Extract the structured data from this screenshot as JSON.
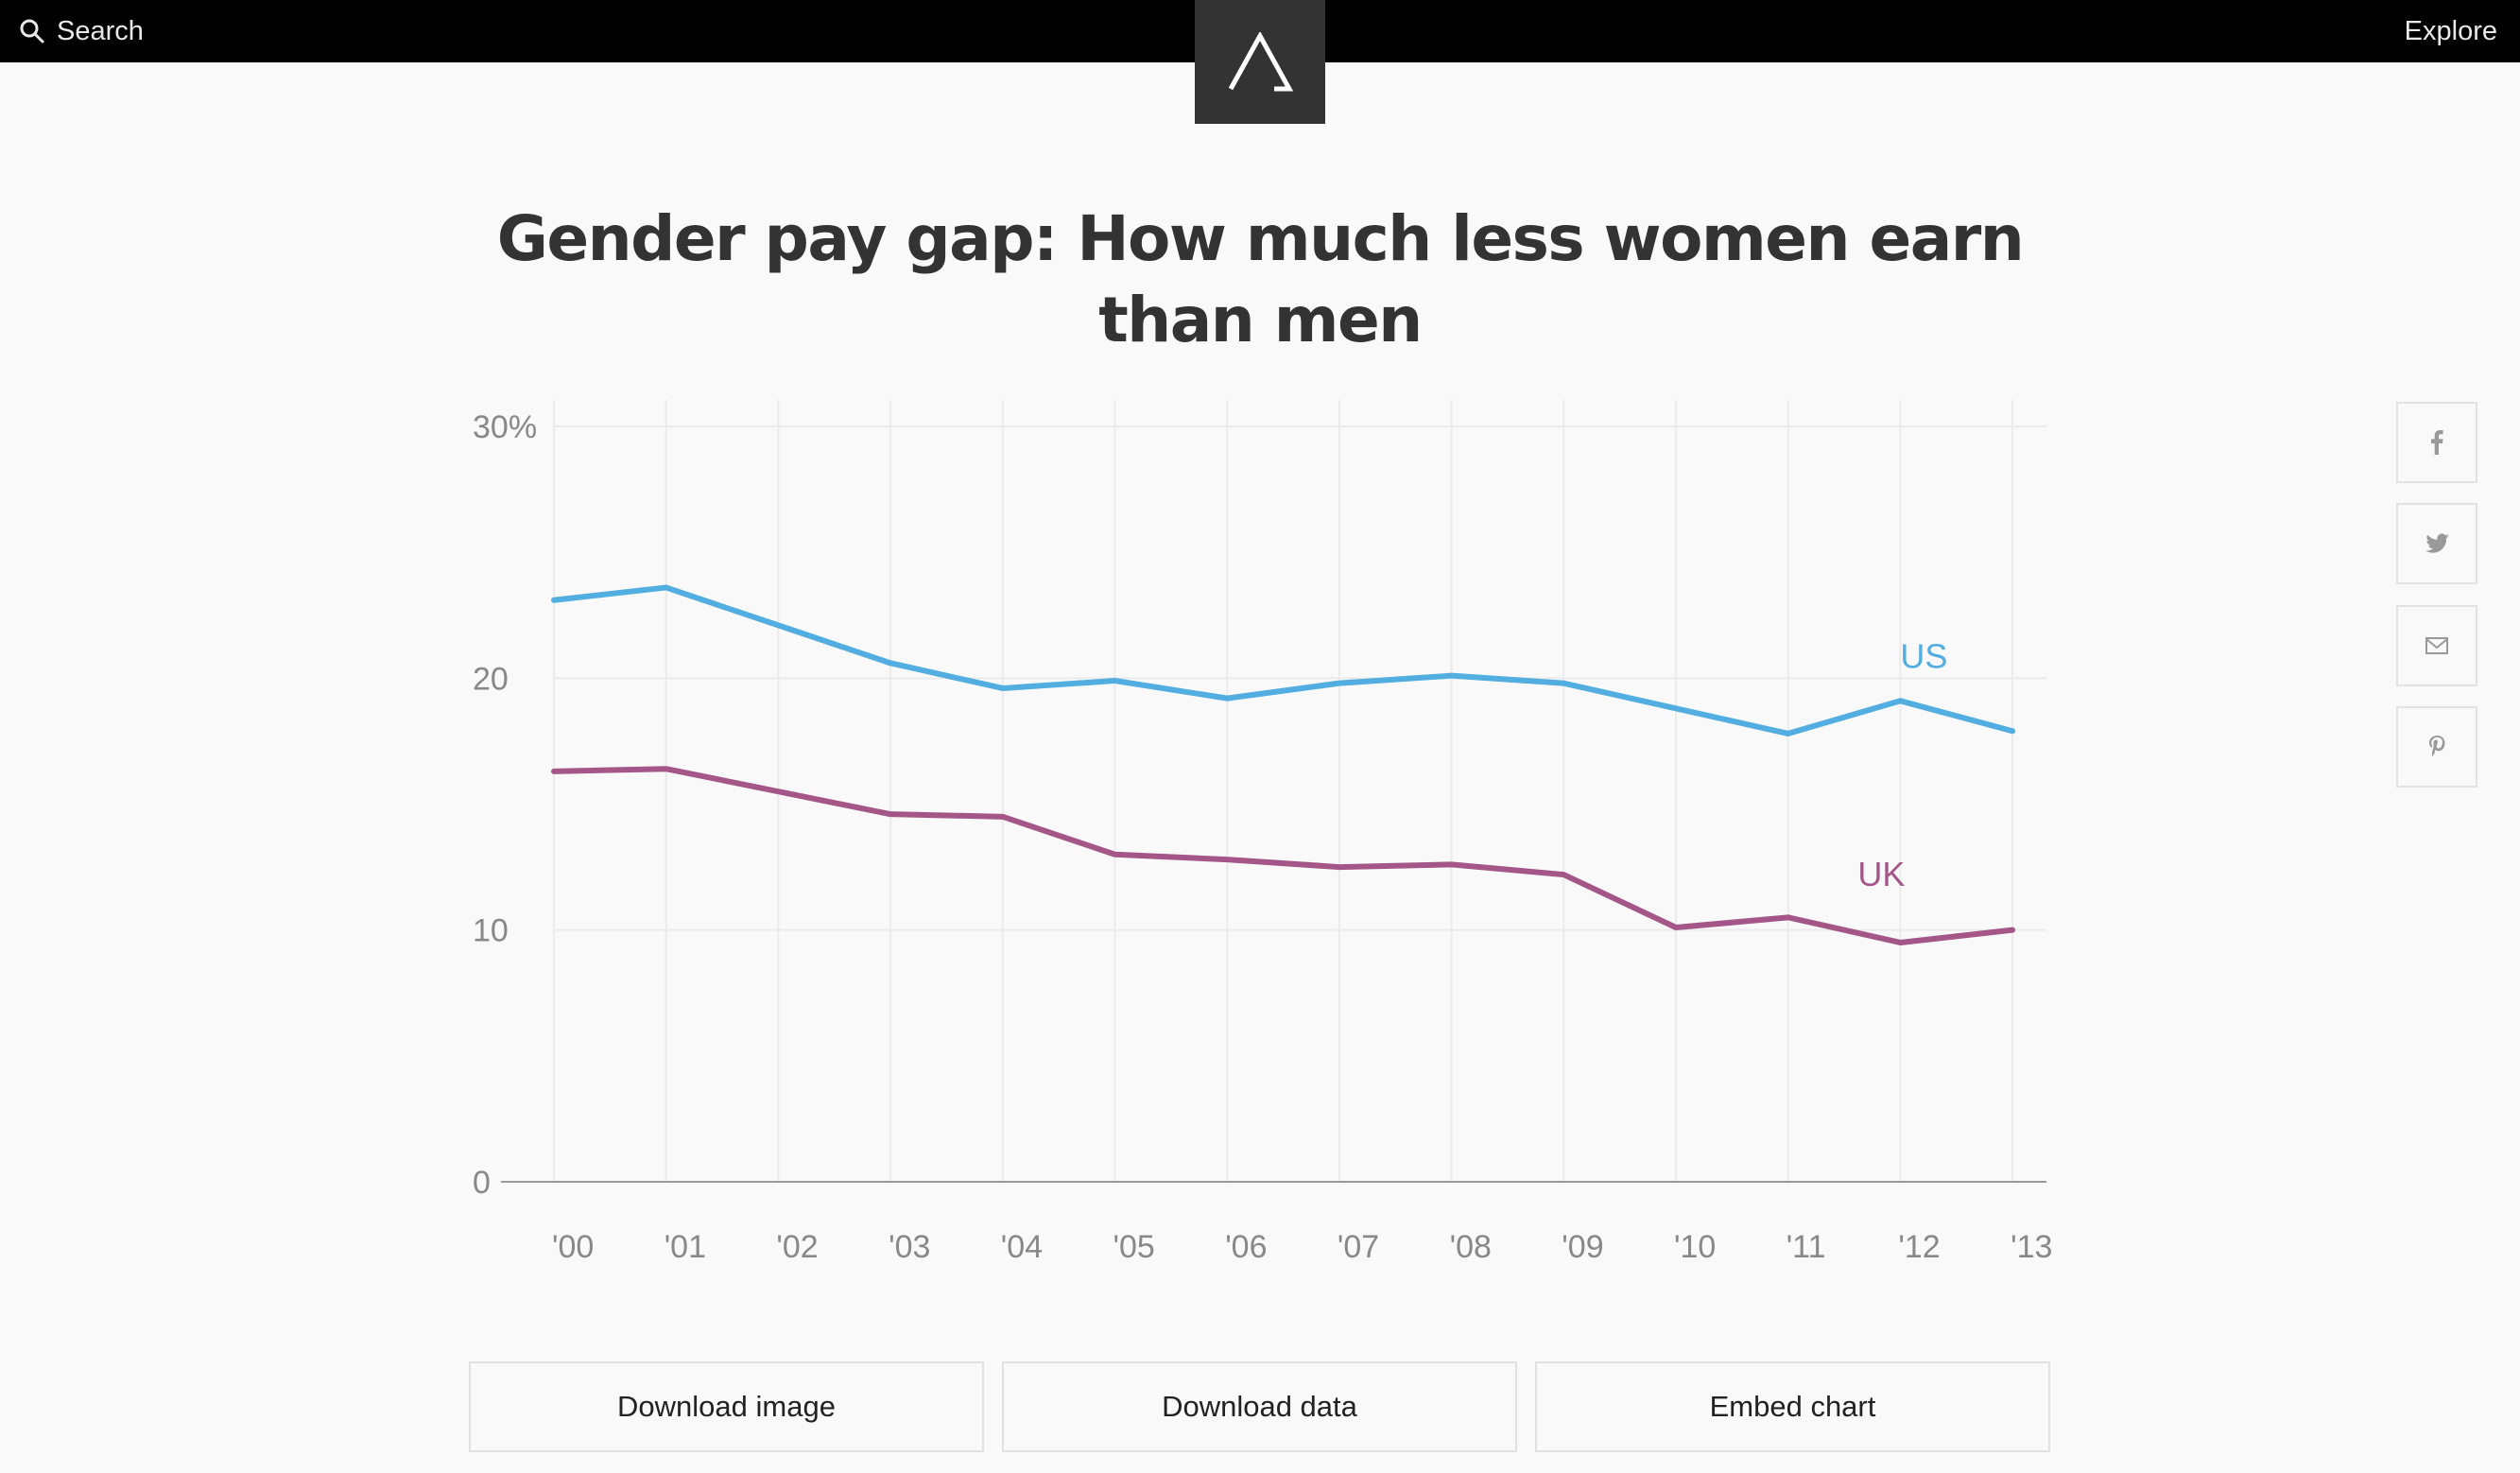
{
  "header": {
    "search_label": "Search",
    "explore_label": "Explore"
  },
  "page": {
    "title": "Gender pay gap: How much less women earn than men"
  },
  "share_icons": [
    "facebook-icon",
    "twitter-icon",
    "email-icon",
    "pinterest-icon"
  ],
  "buttons": {
    "download_image": "Download image",
    "download_data": "Download data",
    "embed_chart": "Embed chart"
  },
  "chart_data": {
    "type": "line",
    "title": "Gender pay gap: How much less women earn than men",
    "xlabel": "",
    "ylabel": "",
    "categories": [
      "'00",
      "'01",
      "'02",
      "'03",
      "'04",
      "'05",
      "'06",
      "'07",
      "'08",
      "'09",
      "'10",
      "'11",
      "'12",
      "'13"
    ],
    "series": [
      {
        "name": "US",
        "color": "#52ade0",
        "values": [
          23.1,
          23.6,
          22.1,
          20.6,
          19.6,
          19.9,
          19.2,
          19.8,
          20.1,
          19.8,
          18.8,
          17.8,
          19.1,
          17.9
        ]
      },
      {
        "name": "UK",
        "color": "#a55688",
        "values": [
          16.3,
          16.4,
          15.5,
          14.6,
          14.5,
          13.0,
          12.8,
          12.5,
          12.6,
          12.2,
          10.1,
          10.5,
          9.5,
          10.0
        ]
      }
    ],
    "y_ticks": [
      "0",
      "10",
      "20",
      "30%"
    ],
    "y_tick_values": [
      0,
      10,
      20,
      30
    ],
    "ylim": [
      0,
      30
    ],
    "grid": true,
    "legend": "inline-labels"
  }
}
